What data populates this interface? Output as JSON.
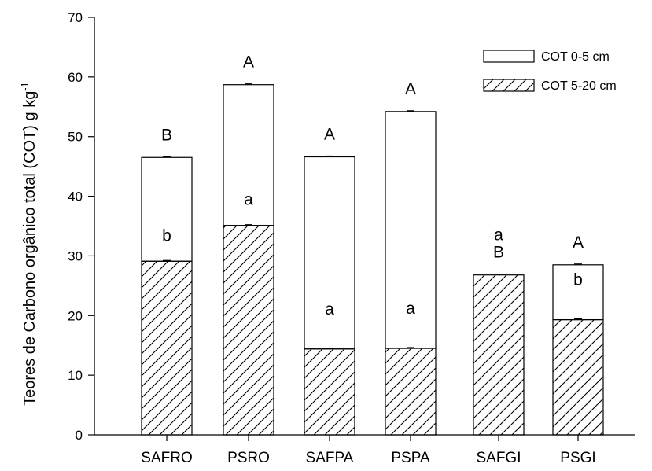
{
  "chart_data": {
    "type": "bar",
    "stacked": true,
    "categories": [
      "SAFRO",
      "PSRO",
      "SAFPA",
      "PSPA",
      "SAFGI",
      "PSGI"
    ],
    "series": [
      {
        "name": "COT 5-20 cm",
        "fill": "hatched",
        "values": [
          29.1,
          35.1,
          14.4,
          14.5,
          26.8,
          19.3
        ],
        "letters": [
          "b",
          "a",
          "a",
          "a",
          "a",
          "b"
        ]
      },
      {
        "name": "COT 0-5 cm",
        "fill": "white",
        "values": [
          17.4,
          23.6,
          32.2,
          39.7,
          0,
          9.2
        ],
        "letters": [
          "B",
          "A",
          "A",
          "A",
          "B",
          "A"
        ]
      }
    ],
    "totals": [
      46.5,
      58.7,
      46.6,
      54.2,
      26.8,
      28.5
    ],
    "ylabel": "Teores de Carbono orgânico total (COT) g kg",
    "ylabel_superscript": "-1",
    "xlabel": "",
    "ylim": [
      0,
      70
    ],
    "yticks": [
      0,
      10,
      20,
      30,
      40,
      50,
      60,
      70
    ],
    "legend_position": "top-right",
    "grid": false,
    "colors": {
      "bar_fill": "#ffffff",
      "stroke": "#000000"
    }
  }
}
